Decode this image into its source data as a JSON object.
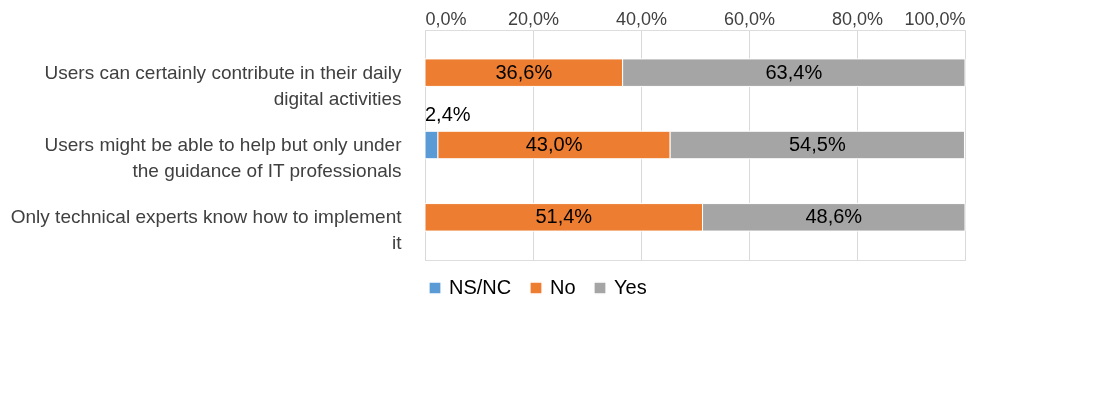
{
  "chart_data": {
    "type": "bar",
    "orientation": "horizontal",
    "stacked": true,
    "categories": [
      "Users can certainly contribute in their daily digital activities",
      "Users might be able to help but only under the guidance of IT professionals",
      "Only technical experts know how to implement it"
    ],
    "series": [
      {
        "name": "NS/NC",
        "color": "#5b9bd5",
        "values": [
          null,
          2.4,
          null
        ],
        "value_labels": [
          null,
          "2,4%",
          null
        ]
      },
      {
        "name": "No",
        "color": "#ed7d31",
        "values": [
          36.6,
          43.0,
          51.4
        ],
        "value_labels": [
          "36,6%",
          "43,0%",
          "51,4%"
        ]
      },
      {
        "name": "Yes",
        "color": "#a5a5a5",
        "values": [
          63.4,
          54.5,
          48.6
        ],
        "value_labels": [
          "63,4%",
          "54,5%",
          "48,6%"
        ]
      }
    ],
    "xlim": [
      0,
      100
    ],
    "xticks": [
      {
        "value": 0,
        "label": "0,0%"
      },
      {
        "value": 20,
        "label": "20,0%"
      },
      {
        "value": 40,
        "label": "40,0%"
      },
      {
        "value": 60,
        "label": "60,0%"
      },
      {
        "value": 80,
        "label": "80,0%"
      },
      {
        "value": 100,
        "label": "100,0%"
      }
    ],
    "grid": "x",
    "legend": "bottom"
  }
}
